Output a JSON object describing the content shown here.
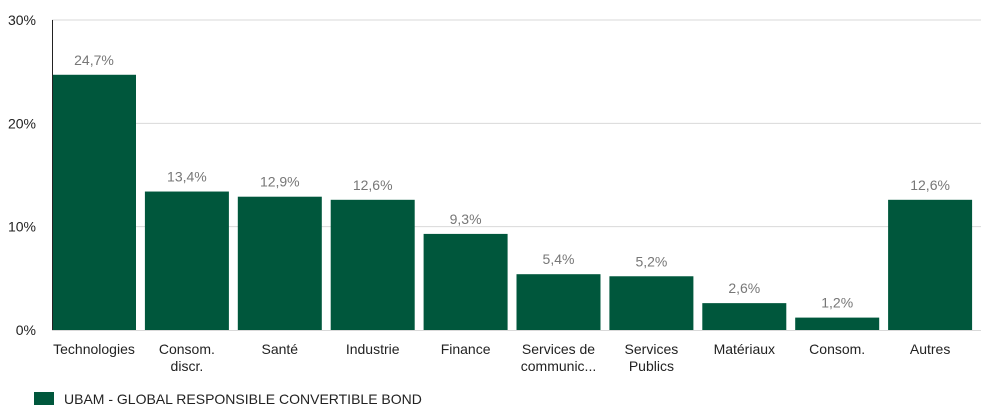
{
  "chart_data": {
    "type": "bar",
    "categories": [
      [
        "Technologies"
      ],
      [
        "Consom.",
        "discr."
      ],
      [
        "Santé"
      ],
      [
        "Industrie"
      ],
      [
        "Finance"
      ],
      [
        "Services de",
        "communic..."
      ],
      [
        "Services",
        "Publics"
      ],
      [
        "Matériaux"
      ],
      [
        "Consom."
      ],
      [
        "Autres"
      ]
    ],
    "series": [
      {
        "name": "UBAM - GLOBAL RESPONSIBLE CONVERTIBLE BOND",
        "values": [
          24.7,
          13.4,
          12.9,
          12.6,
          9.3,
          5.4,
          5.2,
          2.6,
          1.2,
          12.6
        ],
        "labels": [
          "24,7%",
          "13,4%",
          "12,9%",
          "12,6%",
          "9,3%",
          "5,4%",
          "5,2%",
          "2,6%",
          "1,2%",
          "12,6%"
        ]
      }
    ],
    "ylim": [
      0,
      30
    ],
    "yticks": [
      {
        "value": 0,
        "label": "0%"
      },
      {
        "value": 10,
        "label": "10%"
      },
      {
        "value": 20,
        "label": "20%"
      },
      {
        "value": 30,
        "label": "30%"
      }
    ],
    "grid": true,
    "legend_position": "bottom-left",
    "colors": {
      "bar": "#00573c",
      "grid": "#d9d9d9",
      "axis": "#222222",
      "value_label": "#777777",
      "text": "#222222"
    }
  }
}
